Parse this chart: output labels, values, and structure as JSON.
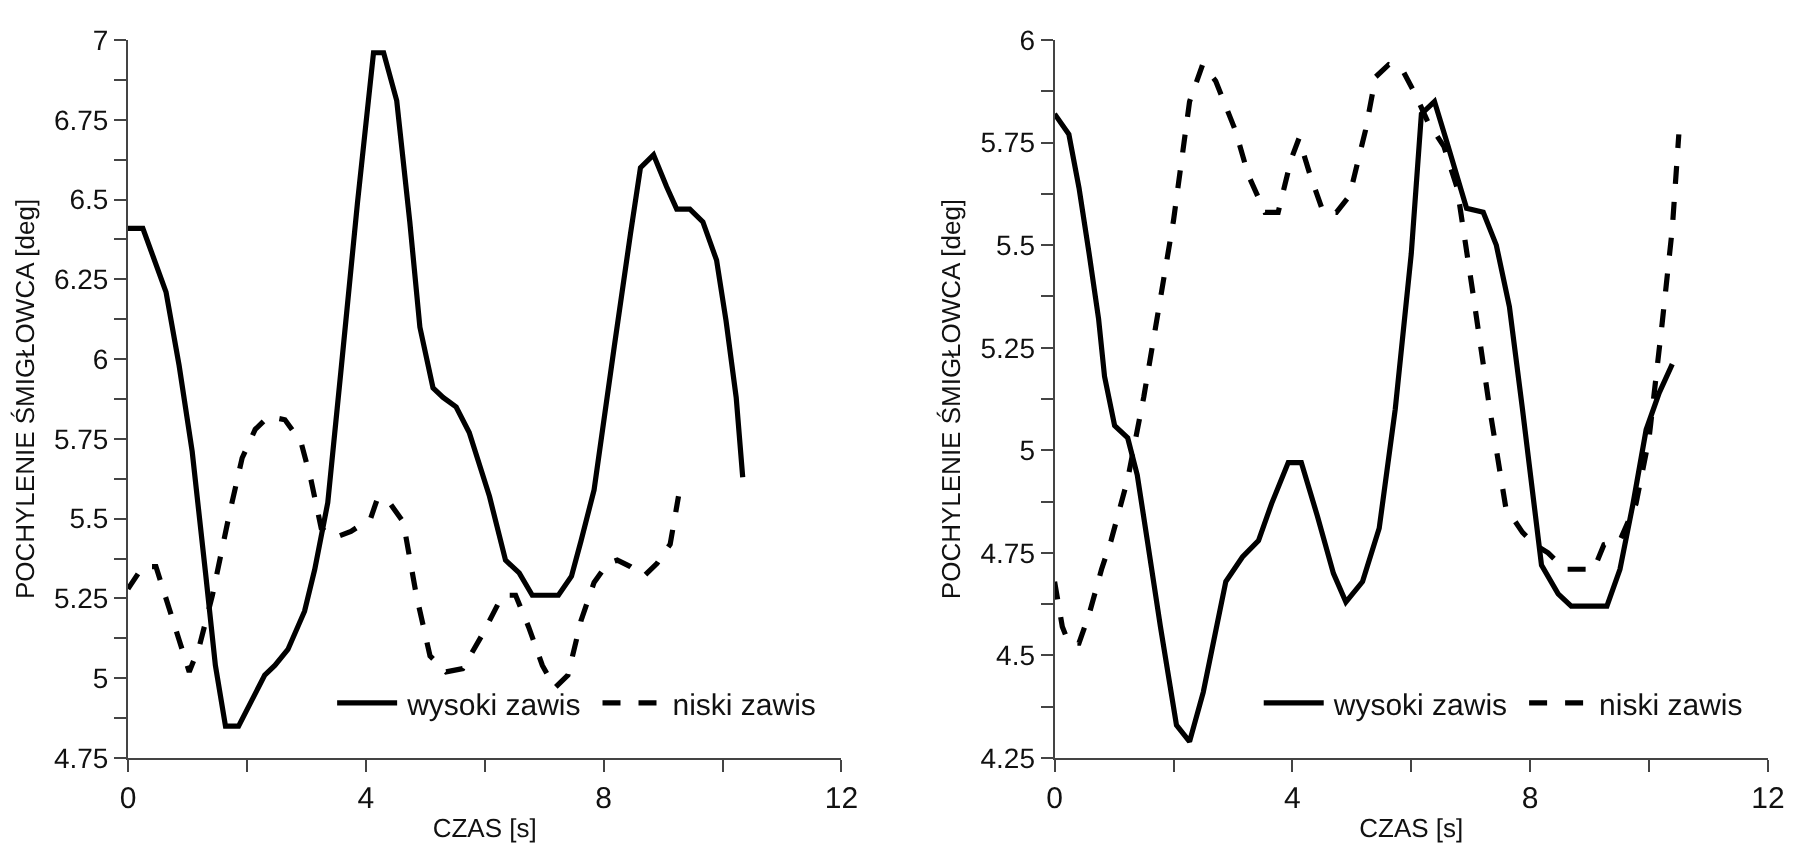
{
  "chart_data": [
    {
      "type": "line",
      "xlabel": "CZAS [s]",
      "ylabel": "POCHYLENIE ŚMIGŁOWCA [deg]",
      "xlim": [
        0,
        12
      ],
      "ylim": [
        4.75,
        7
      ],
      "xticks": [
        0,
        {
          "value": 2,
          "label": null
        },
        4,
        {
          "value": 6,
          "label": null
        },
        8,
        {
          "value": 10,
          "label": null
        },
        12
      ],
      "yticks": [
        4.75,
        {
          "value": 4.875,
          "label": null
        },
        5,
        {
          "value": 5.125,
          "label": null
        },
        5.25,
        {
          "value": 5.375,
          "label": null
        },
        5.5,
        {
          "value": 5.625,
          "label": null
        },
        5.75,
        {
          "value": 5.875,
          "label": null
        },
        6,
        {
          "value": 6.125,
          "label": null
        },
        6.25,
        {
          "value": 6.375,
          "label": null
        },
        6.5,
        {
          "value": 6.625,
          "label": null
        },
        6.75,
        {
          "value": 6.875,
          "label": null
        },
        7
      ],
      "legend": "bottom right",
      "series": [
        {
          "name": "wysoki zawis",
          "color": "#000000",
          "line_style": "solid",
          "x": [
            0,
            0.25,
            0.64,
            0.86,
            1.08,
            1.31,
            1.47,
            1.64,
            1.86,
            2.3,
            2.47,
            2.69,
            2.97,
            3.14,
            3.36,
            3.58,
            3.86,
            4.13,
            4.3,
            4.52,
            4.74,
            4.91,
            5.13,
            5.3,
            5.52,
            5.74,
            6.08,
            6.35,
            6.58,
            6.8,
            7.24,
            7.46,
            7.62,
            7.84,
            8.18,
            8.45,
            8.62,
            8.84,
            9.06,
            9.23,
            9.45,
            9.67,
            9.9,
            10.06,
            10.23,
            10.34
          ],
          "values": [
            6.41,
            6.41,
            6.21,
            5.98,
            5.71,
            5.32,
            5.04,
            4.85,
            4.85,
            5.01,
            5.04,
            5.09,
            5.21,
            5.34,
            5.55,
            5.96,
            6.49,
            6.96,
            6.96,
            6.81,
            6.43,
            6.1,
            5.91,
            5.88,
            5.85,
            5.77,
            5.57,
            5.37,
            5.33,
            5.26,
            5.26,
            5.32,
            5.43,
            5.59,
            6.04,
            6.39,
            6.6,
            6.64,
            6.54,
            6.47,
            6.47,
            6.43,
            6.31,
            6.12,
            5.88,
            5.63
          ]
        },
        {
          "name": "niski zawis",
          "color": "#000000",
          "line_style": "dashed",
          "x": [
            0,
            0.25,
            0.47,
            0.69,
            0.86,
            1.03,
            1.2,
            1.42,
            1.7,
            1.92,
            2.14,
            2.36,
            2.64,
            2.91,
            3.08,
            3.25,
            3.47,
            3.75,
            4.08,
            4.19,
            4.36,
            4.63,
            4.85,
            5.08,
            5.35,
            5.63,
            5.97,
            6.3,
            6.52,
            6.74,
            6.97,
            7.18,
            7.4,
            7.62,
            7.84,
            8.07,
            8.23,
            8.45,
            8.68,
            8.9,
            9.12,
            9.26
          ],
          "values": [
            5.28,
            5.35,
            5.35,
            5.22,
            5.12,
            5.02,
            5.1,
            5.26,
            5.51,
            5.69,
            5.78,
            5.82,
            5.81,
            5.74,
            5.62,
            5.47,
            5.44,
            5.46,
            5.5,
            5.56,
            5.56,
            5.49,
            5.26,
            5.07,
            5.02,
            5.03,
            5.14,
            5.26,
            5.26,
            5.16,
            5.04,
            4.97,
            5.01,
            5.18,
            5.3,
            5.36,
            5.37,
            5.35,
            5.32,
            5.36,
            5.42,
            5.57
          ]
        }
      ]
    },
    {
      "type": "line",
      "xlabel": "CZAS [s]",
      "ylabel": "POCHYLENIE ŚMIGŁOWCA [deg]",
      "xlim": [
        0,
        12
      ],
      "ylim": [
        4.25,
        6
      ],
      "xticks": [
        0,
        {
          "value": 2,
          "label": null
        },
        4,
        {
          "value": 6,
          "label": null
        },
        8,
        {
          "value": 10,
          "label": null
        },
        12
      ],
      "yticks": [
        4.25,
        {
          "value": 4.375,
          "label": null
        },
        4.5,
        {
          "value": 4.625,
          "label": null
        },
        4.75,
        {
          "value": 4.875,
          "label": null
        },
        5,
        {
          "value": 5.125,
          "label": null
        },
        5.25,
        {
          "value": 5.375,
          "label": null
        },
        5.5,
        {
          "value": 5.625,
          "label": null
        },
        5.75,
        {
          "value": 5.875,
          "label": null
        },
        6
      ],
      "legend": "bottom right",
      "series": [
        {
          "name": "wysoki zawis",
          "color": "#000000",
          "line_style": "solid",
          "x": [
            0,
            0.24,
            0.41,
            0.58,
            0.74,
            0.84,
            1.01,
            1.23,
            1.39,
            1.56,
            1.78,
            2.05,
            2.27,
            2.5,
            2.88,
            3.16,
            3.43,
            3.65,
            3.93,
            4.15,
            4.42,
            4.69,
            4.9,
            5.18,
            5.46,
            5.73,
            6.0,
            6.17,
            6.39,
            6.6,
            6.93,
            7.21,
            7.43,
            7.65,
            7.87,
            8.19,
            8.47,
            8.69,
            9.29,
            9.51,
            9.73,
            9.95,
            10.17,
            10.39
          ],
          "values": [
            5.82,
            5.77,
            5.64,
            5.48,
            5.32,
            5.18,
            5.06,
            5.03,
            4.94,
            4.78,
            4.57,
            4.33,
            4.29,
            4.41,
            4.68,
            4.74,
            4.78,
            4.87,
            4.97,
            4.97,
            4.84,
            4.7,
            4.63,
            4.68,
            4.81,
            5.1,
            5.48,
            5.82,
            5.85,
            5.75,
            5.59,
            5.58,
            5.5,
            5.35,
            5.1,
            4.72,
            4.65,
            4.62,
            4.62,
            4.71,
            4.87,
            5.05,
            5.14,
            5.21
          ]
        },
        {
          "name": "niski zawis",
          "color": "#000000",
          "line_style": "dashed",
          "x": [
            0,
            0.13,
            0.24,
            0.41,
            0.58,
            0.79,
            0.95,
            1.23,
            1.5,
            1.78,
            2.0,
            2.27,
            2.49,
            2.71,
            3.04,
            3.26,
            3.54,
            3.76,
            3.98,
            4.11,
            4.3,
            4.52,
            4.74,
            4.96,
            5.23,
            5.4,
            5.62,
            5.84,
            6.06,
            6.28,
            6.55,
            6.77,
            7.04,
            7.32,
            7.59,
            7.87,
            8.08,
            8.3,
            8.58,
            9.07,
            9.24,
            9.51,
            9.78,
            10.0,
            10.22,
            10.39,
            10.5
          ],
          "values": [
            4.68,
            4.57,
            4.53,
            4.53,
            4.6,
            4.71,
            4.78,
            4.93,
            5.13,
            5.37,
            5.56,
            5.85,
            5.94,
            5.9,
            5.78,
            5.67,
            5.58,
            5.58,
            5.71,
            5.76,
            5.67,
            5.58,
            5.58,
            5.62,
            5.78,
            5.91,
            5.94,
            5.93,
            5.87,
            5.8,
            5.74,
            5.64,
            5.38,
            5.1,
            4.86,
            4.8,
            4.77,
            4.75,
            4.71,
            4.71,
            4.77,
            4.78,
            4.87,
            5.03,
            5.31,
            5.54,
            5.77
          ]
        }
      ]
    }
  ]
}
